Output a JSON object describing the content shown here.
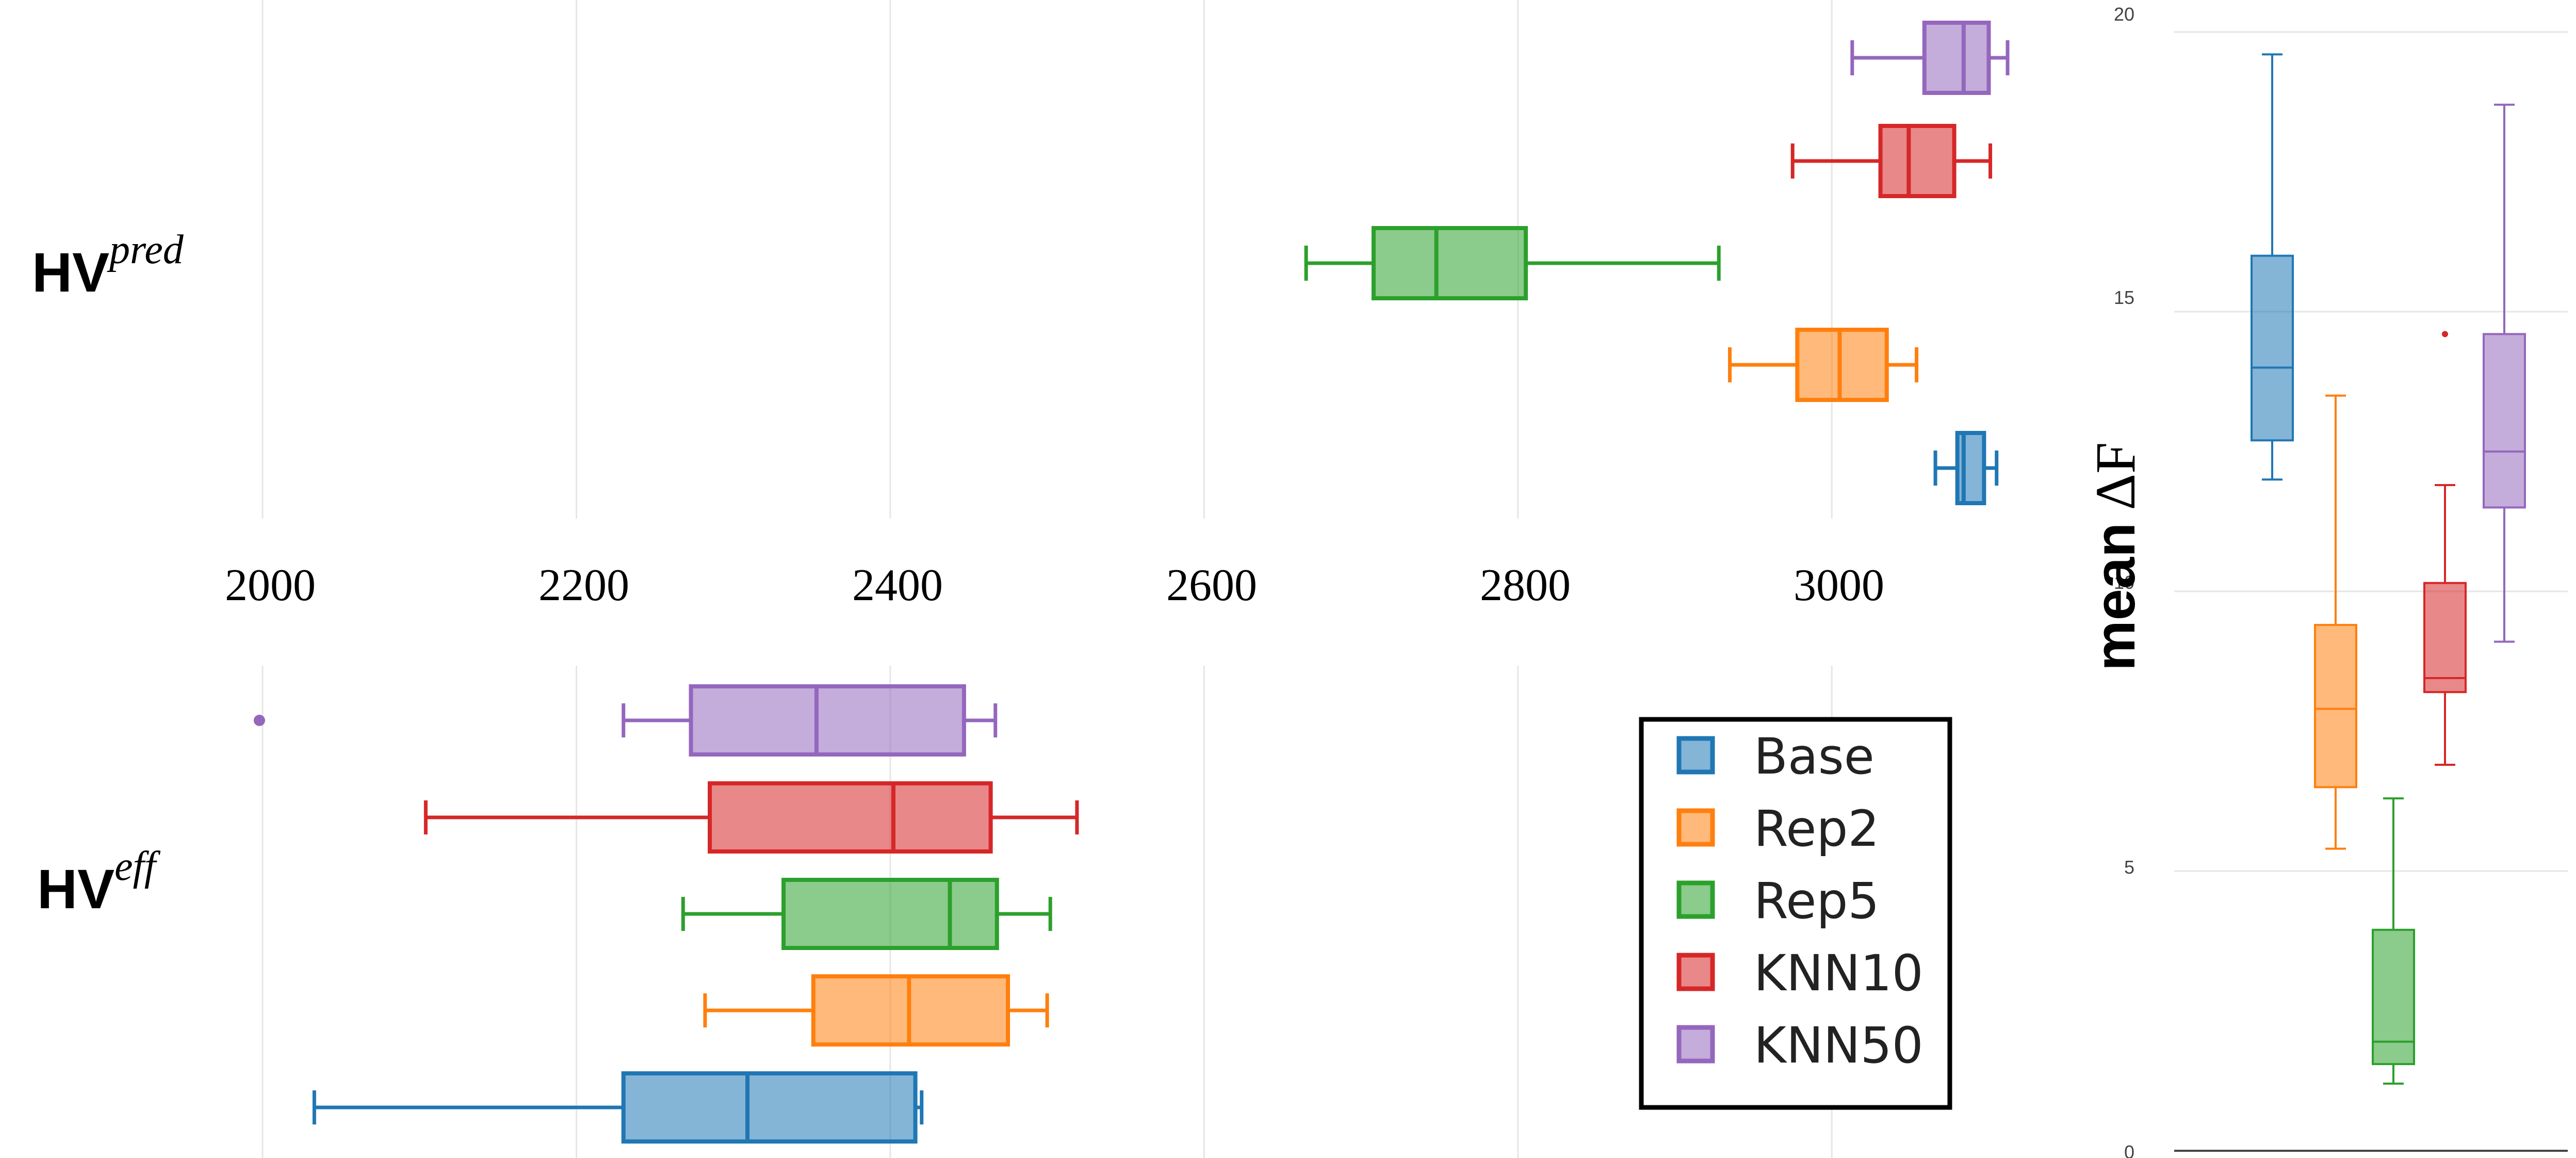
{
  "colors": {
    "Base": "#1f77b4",
    "Rep2": "#ff7f0e",
    "Rep5": "#2ca02c",
    "KNN10": "#d62728",
    "KNN50": "#9467bd",
    "grid": "#e6e6e6",
    "axis": "#444444"
  },
  "chart_data": [
    {
      "type": "box",
      "orientation": "horizontal",
      "row_label": {
        "main": "HV",
        "sup": "pred"
      },
      "xlim": [
        1930,
        3135
      ],
      "x_ticks": [
        2000,
        2200,
        2400,
        2600,
        2800,
        3000
      ],
      "series": [
        {
          "name": "Base",
          "min": 3066,
          "q1": 3080,
          "median": 3084,
          "q3": 3097,
          "max": 3105,
          "outliers": []
        },
        {
          "name": "Rep2",
          "min": 2935,
          "q1": 2978,
          "median": 3005,
          "q3": 3035,
          "max": 3054,
          "outliers": []
        },
        {
          "name": "Rep5",
          "min": 2665,
          "q1": 2708,
          "median": 2748,
          "q3": 2805,
          "max": 2928,
          "outliers": []
        },
        {
          "name": "KNN10",
          "min": 2975,
          "q1": 3031,
          "median": 3049,
          "q3": 3078,
          "max": 3101,
          "outliers": []
        },
        {
          "name": "KNN50",
          "min": 3013,
          "q1": 3059,
          "median": 3084,
          "q3": 3100,
          "max": 3112,
          "outliers": []
        }
      ]
    },
    {
      "type": "box",
      "orientation": "horizontal",
      "row_label": {
        "main": "HV",
        "sup": "eff"
      },
      "xlim": [
        1930,
        3135
      ],
      "x_ticks": [
        2000,
        2200,
        2400,
        2600,
        2800,
        3000
      ],
      "series": [
        {
          "name": "Base",
          "min": 2033,
          "q1": 2230,
          "median": 2309,
          "q3": 2416,
          "max": 2420,
          "outliers": []
        },
        {
          "name": "Rep2",
          "min": 2282,
          "q1": 2351,
          "median": 2412,
          "q3": 2475,
          "max": 2500,
          "outliers": []
        },
        {
          "name": "Rep5",
          "min": 2268,
          "q1": 2332,
          "median": 2438,
          "q3": 2468,
          "max": 2502,
          "outliers": []
        },
        {
          "name": "KNN10",
          "min": 2104,
          "q1": 2285,
          "median": 2402,
          "q3": 2464,
          "max": 2519,
          "outliers": []
        },
        {
          "name": "KNN50",
          "min": 2230,
          "q1": 2273,
          "median": 2353,
          "q3": 2447,
          "max": 2467,
          "outliers": [
            1998
          ]
        }
      ]
    },
    {
      "type": "box",
      "orientation": "vertical",
      "ylabel": {
        "main": "mean",
        "symbol": "ΔF"
      },
      "ylim": [
        0,
        20
      ],
      "y_ticks": [
        0,
        5,
        10,
        15,
        20
      ],
      "series": [
        {
          "name": "Base",
          "min": 12.0,
          "q1": 12.7,
          "median": 14.0,
          "q3": 16.0,
          "max": 19.6,
          "outliers": []
        },
        {
          "name": "Rep2",
          "min": 5.4,
          "q1": 6.5,
          "median": 7.9,
          "q3": 9.4,
          "max": 13.5,
          "outliers": []
        },
        {
          "name": "Rep5",
          "min": 1.2,
          "q1": 1.55,
          "median": 1.95,
          "q3": 3.95,
          "max": 6.3,
          "outliers": []
        },
        {
          "name": "KNN10",
          "min": 6.9,
          "q1": 8.2,
          "median": 8.45,
          "q3": 10.15,
          "max": 11.9,
          "outliers": [
            14.6
          ]
        },
        {
          "name": "KNN50",
          "min": 9.1,
          "q1": 11.5,
          "median": 12.5,
          "q3": 14.6,
          "max": 18.7,
          "outliers": []
        }
      ]
    }
  ],
  "legend": {
    "position": "lower-middle",
    "items": [
      "Base",
      "Rep2",
      "Rep5",
      "KNN10",
      "KNN50"
    ]
  }
}
